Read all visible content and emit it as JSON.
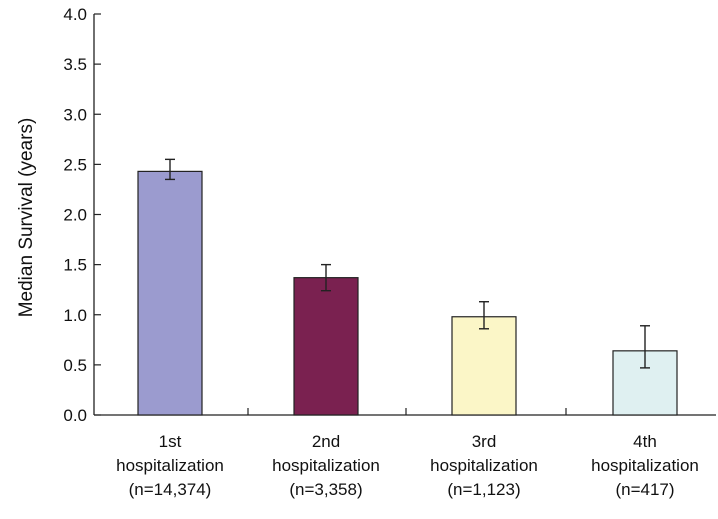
{
  "chart_data": {
    "type": "bar",
    "title": "",
    "xlabel": "",
    "ylabel": "Median Survival (years)",
    "ylim": [
      0,
      4.0
    ],
    "y_ticks": [
      "0.0",
      "0.5",
      "1.0",
      "1.5",
      "2.0",
      "2.5",
      "3.0",
      "3.5",
      "4.0"
    ],
    "grid": false,
    "legend": "none",
    "categories": [
      [
        "1st",
        "hospitalization",
        "(n=14,374)"
      ],
      [
        "2nd",
        "hospitalization",
        "(n=3,358)"
      ],
      [
        "3rd",
        "hospitalization",
        "(n=1,123)"
      ],
      [
        "4th",
        "hospitalization",
        "(n=417)"
      ]
    ],
    "values": [
      2.43,
      1.37,
      0.98,
      0.64
    ],
    "error_low": [
      2.35,
      1.24,
      0.86,
      0.47
    ],
    "error_high": [
      2.55,
      1.5,
      1.13,
      0.89
    ],
    "bar_colors": [
      "#9b9bcf",
      "#7a2150",
      "#fbf6c7",
      "#dff0f1"
    ]
  }
}
